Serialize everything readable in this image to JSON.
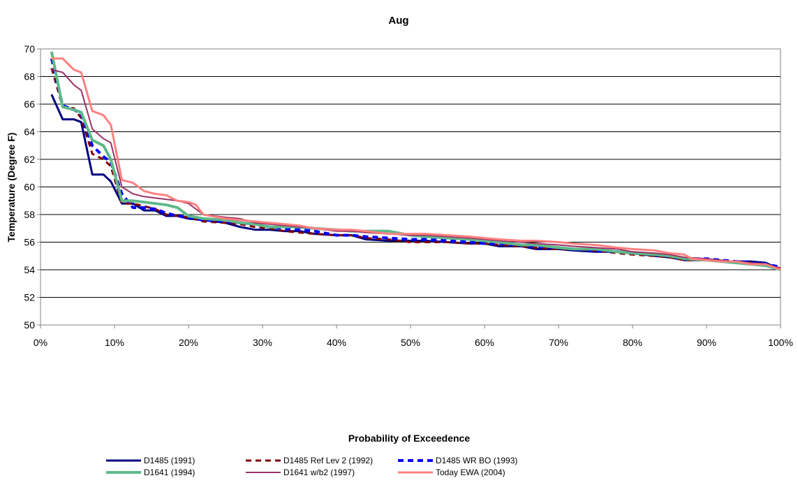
{
  "chart_data": {
    "type": "line",
    "title": "Aug",
    "xlabel": "Probability of Exceedence",
    "ylabel": "Temperature (Degree F)",
    "xlim": [
      0,
      100
    ],
    "ylim": [
      50,
      70
    ],
    "x_ticks": [
      {
        "value": 0,
        "label": "0%"
      },
      {
        "value": 10,
        "label": "10%"
      },
      {
        "value": 20,
        "label": "20%"
      },
      {
        "value": 30,
        "label": "30%"
      },
      {
        "value": 40,
        "label": "40%"
      },
      {
        "value": 50,
        "label": "50%"
      },
      {
        "value": 60,
        "label": "60%"
      },
      {
        "value": 70,
        "label": "70%"
      },
      {
        "value": 80,
        "label": "80%"
      },
      {
        "value": 90,
        "label": "90%"
      },
      {
        "value": 100,
        "label": "100%"
      }
    ],
    "y_ticks": [
      {
        "value": 50,
        "label": "50"
      },
      {
        "value": 52,
        "label": "52"
      },
      {
        "value": 54,
        "label": "54"
      },
      {
        "value": 56,
        "label": "56"
      },
      {
        "value": 58,
        "label": "58"
      },
      {
        "value": 60,
        "label": "60"
      },
      {
        "value": 62,
        "label": "62"
      },
      {
        "value": 64,
        "label": "64"
      },
      {
        "value": 66,
        "label": "66"
      },
      {
        "value": 68,
        "label": "68"
      },
      {
        "value": 70,
        "label": "70"
      }
    ],
    "grid": "horizontal",
    "legend_position": "bottom",
    "series": [
      {
        "name": "D1485 (1991)",
        "color": "#000080",
        "dash": "solid",
        "points": [
          [
            1.5,
            66.7
          ],
          [
            3,
            64.9
          ],
          [
            4.5,
            64.9
          ],
          [
            5.5,
            64.7
          ],
          [
            7,
            60.9
          ],
          [
            8.5,
            60.9
          ],
          [
            9.5,
            60.4
          ],
          [
            11,
            58.8
          ],
          [
            12.5,
            58.8
          ],
          [
            14,
            58.3
          ],
          [
            15.5,
            58.3
          ],
          [
            17,
            57.9
          ],
          [
            18.5,
            57.9
          ],
          [
            20,
            57.7
          ],
          [
            22,
            57.6
          ],
          [
            25,
            57.4
          ],
          [
            27,
            57.1
          ],
          [
            29,
            56.9
          ],
          [
            31,
            56.9
          ],
          [
            33,
            56.8
          ],
          [
            35,
            56.8
          ],
          [
            37,
            56.6
          ],
          [
            40,
            56.5
          ],
          [
            42,
            56.5
          ],
          [
            44,
            56.2
          ],
          [
            47,
            56.1
          ],
          [
            50,
            56.1
          ],
          [
            52,
            56.1
          ],
          [
            55,
            56.0
          ],
          [
            58,
            55.9
          ],
          [
            60,
            55.9
          ],
          [
            62,
            55.7
          ],
          [
            65,
            55.7
          ],
          [
            67,
            55.5
          ],
          [
            70,
            55.5
          ],
          [
            72,
            55.4
          ],
          [
            75,
            55.3
          ],
          [
            78,
            55.3
          ],
          [
            80,
            55.2
          ],
          [
            83,
            55.0
          ],
          [
            85,
            54.9
          ],
          [
            87,
            54.7
          ],
          [
            90,
            54.7
          ],
          [
            92,
            54.6
          ],
          [
            94,
            54.6
          ],
          [
            96,
            54.6
          ],
          [
            98,
            54.5
          ],
          [
            100,
            54.0
          ]
        ]
      },
      {
        "name": "D1485 Ref Lev 2 (1992)",
        "color": "#800000",
        "dash": "dashed",
        "points": [
          [
            1.5,
            68.6
          ],
          [
            3,
            65.8
          ],
          [
            4.5,
            65.7
          ],
          [
            5.5,
            65.0
          ],
          [
            7,
            62.4
          ],
          [
            8.5,
            62.0
          ],
          [
            9.5,
            61.5
          ],
          [
            11,
            58.8
          ],
          [
            12.5,
            58.8
          ],
          [
            14,
            58.6
          ],
          [
            15.5,
            58.4
          ],
          [
            17,
            58.0
          ],
          [
            18.5,
            57.9
          ],
          [
            20,
            57.8
          ],
          [
            22,
            57.5
          ],
          [
            25,
            57.4
          ],
          [
            27,
            57.3
          ],
          [
            29,
            57.1
          ],
          [
            31,
            57.0
          ],
          [
            33,
            56.8
          ],
          [
            35,
            56.7
          ],
          [
            37,
            56.6
          ],
          [
            40,
            56.5
          ],
          [
            42,
            56.5
          ],
          [
            44,
            56.3
          ],
          [
            47,
            56.2
          ],
          [
            50,
            56.0
          ],
          [
            52,
            56.0
          ],
          [
            55,
            56.0
          ],
          [
            58,
            55.9
          ],
          [
            60,
            55.9
          ],
          [
            62,
            55.8
          ],
          [
            65,
            55.7
          ],
          [
            67,
            55.6
          ],
          [
            70,
            55.5
          ],
          [
            72,
            55.5
          ],
          [
            75,
            55.4
          ],
          [
            78,
            55.2
          ],
          [
            80,
            55.1
          ],
          [
            83,
            55.0
          ],
          [
            85,
            54.9
          ],
          [
            87,
            54.7
          ],
          [
            90,
            54.7
          ],
          [
            92,
            54.6
          ],
          [
            94,
            54.6
          ],
          [
            96,
            54.5
          ],
          [
            98,
            54.4
          ],
          [
            100,
            54.1
          ]
        ]
      },
      {
        "name": "D1485 WR BO (1993)",
        "color": "#0000ff",
        "dash": "dashed",
        "points": [
          [
            1.5,
            69.3
          ],
          [
            3,
            65.9
          ],
          [
            4.5,
            65.6
          ],
          [
            5.5,
            65.3
          ],
          [
            7,
            63.0
          ],
          [
            8.5,
            62.2
          ],
          [
            9.5,
            61.8
          ],
          [
            11,
            59.5
          ],
          [
            12.5,
            58.5
          ],
          [
            14,
            58.5
          ],
          [
            15.5,
            58.4
          ],
          [
            17,
            58.1
          ],
          [
            18.5,
            57.9
          ],
          [
            20,
            57.8
          ],
          [
            22,
            57.6
          ],
          [
            25,
            57.5
          ],
          [
            27,
            57.4
          ],
          [
            29,
            57.3
          ],
          [
            31,
            57.1
          ],
          [
            33,
            57.0
          ],
          [
            35,
            56.9
          ],
          [
            37,
            56.8
          ],
          [
            40,
            56.5
          ],
          [
            42,
            56.5
          ],
          [
            44,
            56.4
          ],
          [
            47,
            56.3
          ],
          [
            50,
            56.2
          ],
          [
            52,
            56.2
          ],
          [
            55,
            56.1
          ],
          [
            58,
            56.0
          ],
          [
            60,
            55.9
          ],
          [
            62,
            55.9
          ],
          [
            65,
            55.8
          ],
          [
            67,
            55.7
          ],
          [
            70,
            55.6
          ],
          [
            72,
            55.5
          ],
          [
            75,
            55.4
          ],
          [
            78,
            55.3
          ],
          [
            80,
            55.2
          ],
          [
            83,
            55.1
          ],
          [
            85,
            55.0
          ],
          [
            87,
            54.8
          ],
          [
            90,
            54.8
          ],
          [
            92,
            54.7
          ],
          [
            94,
            54.6
          ],
          [
            96,
            54.5
          ],
          [
            98,
            54.4
          ],
          [
            100,
            54.2
          ]
        ]
      },
      {
        "name": "D1641 (1994)",
        "color": "#5fb88a",
        "dash": "solid",
        "points": [
          [
            1.5,
            69.8
          ],
          [
            3,
            65.8
          ],
          [
            4.5,
            65.6
          ],
          [
            5.5,
            65.4
          ],
          [
            7,
            63.4
          ],
          [
            8.5,
            63.0
          ],
          [
            9.5,
            62.0
          ],
          [
            11,
            59.0
          ],
          [
            12.5,
            59.0
          ],
          [
            14,
            58.9
          ],
          [
            15.5,
            58.8
          ],
          [
            17,
            58.7
          ],
          [
            18.5,
            58.5
          ],
          [
            20,
            57.9
          ],
          [
            22,
            57.7
          ],
          [
            25,
            57.6
          ],
          [
            27,
            57.4
          ],
          [
            29,
            57.3
          ],
          [
            31,
            57.1
          ],
          [
            33,
            57.1
          ],
          [
            35,
            57.1
          ],
          [
            37,
            57.0
          ],
          [
            40,
            56.9
          ],
          [
            42,
            56.8
          ],
          [
            44,
            56.8
          ],
          [
            47,
            56.8
          ],
          [
            50,
            56.5
          ],
          [
            52,
            56.4
          ],
          [
            55,
            56.3
          ],
          [
            58,
            56.2
          ],
          [
            60,
            56.1
          ],
          [
            62,
            56.0
          ],
          [
            65,
            55.8
          ],
          [
            67,
            55.8
          ],
          [
            70,
            55.6
          ],
          [
            72,
            55.5
          ],
          [
            75,
            55.5
          ],
          [
            78,
            55.3
          ],
          [
            80,
            55.2
          ],
          [
            83,
            55.1
          ],
          [
            85,
            55.0
          ],
          [
            87,
            54.8
          ],
          [
            90,
            54.7
          ],
          [
            92,
            54.6
          ],
          [
            94,
            54.5
          ],
          [
            96,
            54.4
          ],
          [
            98,
            54.3
          ],
          [
            100,
            54.0
          ]
        ]
      },
      {
        "name": "D1641 w/b2 (1997)",
        "color": "#993366",
        "dash": "solid",
        "points": [
          [
            1.5,
            68.5
          ],
          [
            3,
            68.3
          ],
          [
            4.5,
            67.4
          ],
          [
            5.5,
            67.0
          ],
          [
            7,
            64.2
          ],
          [
            8.5,
            63.5
          ],
          [
            9.5,
            63.2
          ],
          [
            11,
            60.0
          ],
          [
            12.5,
            59.5
          ],
          [
            14,
            59.3
          ],
          [
            15.5,
            59.2
          ],
          [
            17,
            59.1
          ],
          [
            18.5,
            59.0
          ],
          [
            20,
            58.8
          ],
          [
            22,
            58.0
          ],
          [
            25,
            57.8
          ],
          [
            27,
            57.7
          ],
          [
            29,
            57.4
          ],
          [
            31,
            57.3
          ],
          [
            33,
            57.2
          ],
          [
            35,
            57.1
          ],
          [
            37,
            57.0
          ],
          [
            40,
            56.8
          ],
          [
            42,
            56.8
          ],
          [
            44,
            56.7
          ],
          [
            47,
            56.6
          ],
          [
            50,
            56.5
          ],
          [
            52,
            56.5
          ],
          [
            55,
            56.4
          ],
          [
            58,
            56.3
          ],
          [
            60,
            56.2
          ],
          [
            62,
            56.1
          ],
          [
            65,
            56.0
          ],
          [
            67,
            55.9
          ],
          [
            70,
            55.8
          ],
          [
            72,
            55.7
          ],
          [
            75,
            55.6
          ],
          [
            78,
            55.5
          ],
          [
            80,
            55.3
          ],
          [
            83,
            55.2
          ],
          [
            85,
            55.1
          ],
          [
            87,
            54.9
          ],
          [
            90,
            54.8
          ],
          [
            92,
            54.7
          ],
          [
            94,
            54.6
          ],
          [
            96,
            54.5
          ],
          [
            98,
            54.4
          ],
          [
            100,
            54.1
          ]
        ]
      },
      {
        "name": "Today EWA (2004)",
        "color": "#ff8080",
        "dash": "solid",
        "points": [
          [
            1.5,
            69.3
          ],
          [
            3,
            69.3
          ],
          [
            4.5,
            68.5
          ],
          [
            5.5,
            68.3
          ],
          [
            7,
            65.5
          ],
          [
            8.5,
            65.2
          ],
          [
            9.5,
            64.5
          ],
          [
            11,
            60.5
          ],
          [
            12.5,
            60.3
          ],
          [
            14,
            59.7
          ],
          [
            15.5,
            59.5
          ],
          [
            17,
            59.4
          ],
          [
            18.5,
            59.0
          ],
          [
            20,
            58.9
          ],
          [
            21,
            58.7
          ],
          [
            22,
            58.0
          ],
          [
            25,
            57.7
          ],
          [
            27,
            57.6
          ],
          [
            29,
            57.5
          ],
          [
            31,
            57.4
          ],
          [
            33,
            57.3
          ],
          [
            35,
            57.2
          ],
          [
            37,
            57.0
          ],
          [
            40,
            56.9
          ],
          [
            42,
            56.9
          ],
          [
            44,
            56.8
          ],
          [
            47,
            56.6
          ],
          [
            50,
            56.6
          ],
          [
            52,
            56.6
          ],
          [
            55,
            56.5
          ],
          [
            58,
            56.4
          ],
          [
            60,
            56.3
          ],
          [
            62,
            56.2
          ],
          [
            65,
            56.1
          ],
          [
            67,
            56.1
          ],
          [
            70,
            56.0
          ],
          [
            72,
            55.9
          ],
          [
            75,
            55.8
          ],
          [
            78,
            55.6
          ],
          [
            80,
            55.5
          ],
          [
            83,
            55.4
          ],
          [
            85,
            55.2
          ],
          [
            87,
            55.1
          ],
          [
            88,
            54.8
          ],
          [
            90,
            54.7
          ],
          [
            92,
            54.6
          ],
          [
            94,
            54.6
          ],
          [
            96,
            54.4
          ],
          [
            98,
            54.4
          ],
          [
            100,
            54.0
          ]
        ]
      }
    ]
  }
}
